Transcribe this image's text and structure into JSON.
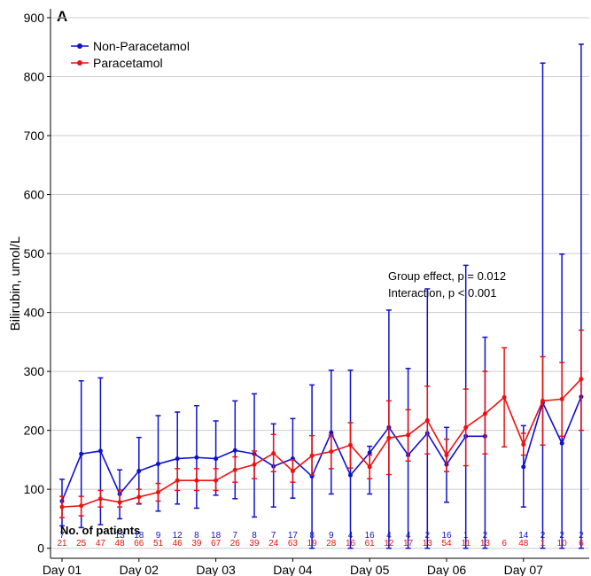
{
  "chart_data": {
    "type": "line",
    "panel_label": "A",
    "ylabel": "Bilirubin, umol/L",
    "categories": [
      "Day 01",
      null,
      null,
      null,
      "Day 02",
      null,
      null,
      null,
      "Day 03",
      null,
      null,
      null,
      "Day 04",
      null,
      null,
      null,
      "Day 05",
      null,
      null,
      null,
      "Day 06",
      null,
      null,
      null,
      "Day 07",
      null,
      null,
      null
    ],
    "series": [
      {
        "name": "Non-Paracetamol",
        "color": "#1010d0",
        "values": [
          80,
          160,
          165,
          92,
          131,
          143,
          152,
          154,
          152,
          166,
          160,
          139,
          152,
          122,
          196,
          124,
          162,
          205,
          158,
          195,
          142,
          190,
          190,
          null,
          138,
          247,
          178,
          257
        ],
        "low": [
          38,
          35,
          40,
          50,
          75,
          63,
          75,
          68,
          90,
          84,
          53,
          70,
          85,
          0,
          92,
          0,
          92,
          0,
          0,
          0,
          78,
          0,
          0,
          null,
          70,
          0,
          0,
          0
        ],
        "high": [
          117,
          284,
          289,
          133,
          188,
          225,
          231,
          242,
          216,
          250,
          262,
          211,
          220,
          277,
          302,
          302,
          173,
          404,
          305,
          440,
          205,
          480,
          358,
          null,
          208,
          823,
          499,
          855
        ],
        "counts": [
          7,
          null,
          null,
          13,
          18,
          9,
          12,
          8,
          18,
          7,
          8,
          7,
          17,
          8,
          9,
          4,
          16,
          4,
          4,
          2,
          16,
          1,
          2,
          null,
          14,
          2,
          2,
          2
        ]
      },
      {
        "name": "Paracetamol",
        "color": "#ee1111",
        "values": [
          70,
          72,
          84,
          78,
          87,
          95,
          115,
          115,
          115,
          133,
          142,
          161,
          131,
          157,
          164,
          175,
          138,
          187,
          192,
          217,
          158,
          205,
          228,
          256,
          176,
          250,
          253,
          287
        ],
        "low": [
          52,
          55,
          70,
          70,
          76,
          80,
          98,
          98,
          98,
          112,
          118,
          130,
          112,
          124,
          135,
          136,
          118,
          125,
          148,
          160,
          130,
          140,
          160,
          172,
          158,
          175,
          190,
          200
        ],
        "high": [
          88,
          88,
          98,
          99,
          100,
          110,
          135,
          135,
          135,
          155,
          165,
          193,
          150,
          191,
          192,
          213,
          158,
          250,
          235,
          275,
          185,
          270,
          300,
          340,
          195,
          325,
          315,
          370
        ],
        "counts": [
          21,
          25,
          47,
          48,
          66,
          51,
          46,
          39,
          67,
          26,
          39,
          24,
          63,
          19,
          28,
          16,
          61,
          12,
          17,
          13,
          54,
          11,
          13,
          6,
          48,
          1,
          10,
          6
        ]
      }
    ],
    "ylim": [
      -17,
      915
    ],
    "yticks": [
      0,
      100,
      200,
      300,
      400,
      500,
      600,
      700,
      800,
      900
    ],
    "grid": true,
    "legend": "top-left",
    "annotations": [
      "Group effect, p = 0.012",
      "Interaction, p < 0.001"
    ],
    "counts_label": "No. of patients"
  }
}
